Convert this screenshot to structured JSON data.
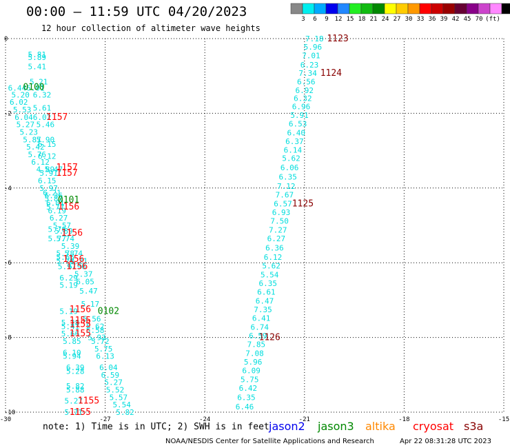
{
  "title": "00:00 – 11:59 UTC 04/20/2023",
  "subtitle": "12 hour collection of altimeter wave heights",
  "note": "note:  1) Time is in UTC; 2) SWH is in feet",
  "satellites": [
    {
      "name": "jason2",
      "color": "#0000ee"
    },
    {
      "name": "jason3",
      "color": "#008800"
    },
    {
      "name": "altika",
      "color": "#ff8800"
    },
    {
      "name": "cryosat",
      "color": "#ff0000"
    },
    {
      "name": "s3a",
      "color": "#880000"
    }
  ],
  "credit": "NOAA/NESDIS Center for Satellite Applications and Research",
  "timestamp": "Apr 22 08:31:28 UTC 2023",
  "colorbar": {
    "unit": "(ft)",
    "colors": [
      "#888888",
      "#00eeee",
      "#00aaff",
      "#0000ee",
      "#2288ff",
      "#22ee22",
      "#11bb11",
      "#008800",
      "#ffff00",
      "#ffcc00",
      "#ff9900",
      "#ff0000",
      "#cc0000",
      "#990000",
      "#660033",
      "#880088",
      "#cc44cc",
      "#ff88ff",
      "#000000"
    ],
    "labels": [
      "3",
      "6",
      "9",
      "12",
      "15",
      "18",
      "21",
      "24",
      "27",
      "30",
      "33",
      "36",
      "39",
      "42",
      "45",
      "70"
    ]
  },
  "chart_data": {
    "type": "scatter",
    "title": "00:00 – 11:59 UTC 04/20/2023",
    "xlim": [
      -30,
      -15
    ],
    "ylim": [
      -10,
      0
    ],
    "x_ticks": [
      "-30",
      "-27",
      "-24",
      "-21",
      "-18",
      "-15"
    ],
    "y_ticks": [
      "0",
      "-2",
      "-4",
      "-6",
      "-8",
      "-10"
    ],
    "grid": true,
    "value_color": "#00dddd",
    "west_track": [
      {
        "x": -29.05,
        "y": -0.42,
        "v": "5.81"
      },
      {
        "x": -29.05,
        "y": -0.5,
        "v": "5.89"
      },
      {
        "x": -29.05,
        "y": -0.75,
        "v": "5.41"
      },
      {
        "x": -29.0,
        "y": -1.15,
        "v": "5.21"
      },
      {
        "x": -29.65,
        "y": -1.32,
        "v": "6.44"
      },
      {
        "x": -29.1,
        "y": -1.32,
        "v": "6.01"
      },
      {
        "x": -28.9,
        "y": -1.5,
        "v": "6.32"
      },
      {
        "x": -29.55,
        "y": -1.5,
        "v": "5.20"
      },
      {
        "x": -29.6,
        "y": -1.7,
        "v": "6.02"
      },
      {
        "x": -28.9,
        "y": -1.85,
        "v": "5.61"
      },
      {
        "x": -29.5,
        "y": -1.9,
        "v": "5.53"
      },
      {
        "x": -29.45,
        "y": -2.1,
        "v": "6.04"
      },
      {
        "x": -28.9,
        "y": -2.1,
        "v": "6.02"
      },
      {
        "x": -29.4,
        "y": -2.3,
        "v": "5.27"
      },
      {
        "x": -28.8,
        "y": -2.3,
        "v": "5.46"
      },
      {
        "x": -29.3,
        "y": -2.5,
        "v": "5.23"
      },
      {
        "x": -29.2,
        "y": -2.7,
        "v": "5.87"
      },
      {
        "x": -28.8,
        "y": -2.7,
        "v": "5.90"
      },
      {
        "x": -28.75,
        "y": -2.82,
        "v": "6.15"
      },
      {
        "x": -29.1,
        "y": -2.9,
        "v": "5.42"
      },
      {
        "x": -29.05,
        "y": -3.1,
        "v": "5.76"
      },
      {
        "x": -28.75,
        "y": -3.15,
        "v": "6.12"
      },
      {
        "x": -28.95,
        "y": -3.3,
        "v": "6.12"
      },
      {
        "x": -28.8,
        "y": -3.5,
        "v": "4.89"
      },
      {
        "x": -28.55,
        "y": -3.5,
        "v": "5.47"
      },
      {
        "x": -28.7,
        "y": -3.6,
        "v": "5.91"
      },
      {
        "x": -28.75,
        "y": -3.8,
        "v": "6.15"
      },
      {
        "x": -28.7,
        "y": -4.0,
        "v": "5.97"
      },
      {
        "x": -28.6,
        "y": -4.12,
        "v": "6.21"
      },
      {
        "x": -28.55,
        "y": -4.2,
        "v": "6.36"
      },
      {
        "x": -28.55,
        "y": -4.28,
        "v": "5.87"
      },
      {
        "x": -28.5,
        "y": -4.4,
        "v": "6.01"
      },
      {
        "x": -28.5,
        "y": -4.5,
        "v": "5.77"
      },
      {
        "x": -28.45,
        "y": -4.6,
        "v": "6.19"
      },
      {
        "x": -28.4,
        "y": -4.8,
        "v": "6.27"
      },
      {
        "x": -28.3,
        "y": -5.0,
        "v": "5.57"
      },
      {
        "x": -28.45,
        "y": -5.1,
        "v": "5.76"
      },
      {
        "x": -28.25,
        "y": -5.15,
        "v": "5.89"
      },
      {
        "x": -28.45,
        "y": -5.35,
        "v": "5.77"
      },
      {
        "x": -28.2,
        "y": -5.35,
        "v": "5.74"
      },
      {
        "x": -28.05,
        "y": -5.55,
        "v": "5.39"
      },
      {
        "x": -28.2,
        "y": -5.75,
        "v": "5.78"
      },
      {
        "x": -27.95,
        "y": -5.75,
        "v": "5.74"
      },
      {
        "x": -28.2,
        "y": -5.85,
        "v": "5.66"
      },
      {
        "x": -28.2,
        "y": -5.95,
        "v": "5.78"
      },
      {
        "x": -27.8,
        "y": -5.95,
        "v": "6.21"
      },
      {
        "x": -28.15,
        "y": -6.1,
        "v": "5.97"
      },
      {
        "x": -27.85,
        "y": -6.1,
        "v": "5.96"
      },
      {
        "x": -27.65,
        "y": -6.3,
        "v": "5.37"
      },
      {
        "x": -28.1,
        "y": -6.4,
        "v": "6.29"
      },
      {
        "x": -27.6,
        "y": -6.5,
        "v": "6.05"
      },
      {
        "x": -28.1,
        "y": -6.6,
        "v": "5.19"
      },
      {
        "x": -27.5,
        "y": -6.75,
        "v": "5.47"
      },
      {
        "x": -27.45,
        "y": -7.1,
        "v": "5.17"
      },
      {
        "x": -28.1,
        "y": -7.3,
        "v": "5.19"
      },
      {
        "x": -27.4,
        "y": -7.5,
        "v": "5.56"
      },
      {
        "x": -28.05,
        "y": -7.6,
        "v": "5.28"
      },
      {
        "x": -28.05,
        "y": -7.7,
        "v": "5.41"
      },
      {
        "x": -27.3,
        "y": -7.7,
        "v": "5.62"
      },
      {
        "x": -27.3,
        "y": -7.8,
        "v": "5.58"
      },
      {
        "x": -28.05,
        "y": -7.9,
        "v": "5.66"
      },
      {
        "x": -27.25,
        "y": -8.0,
        "v": "5.93"
      },
      {
        "x": -28.0,
        "y": -8.1,
        "v": "5.85"
      },
      {
        "x": -27.15,
        "y": -8.1,
        "v": "5.72"
      },
      {
        "x": -27.05,
        "y": -8.3,
        "v": "5.75"
      },
      {
        "x": -28.0,
        "y": -8.4,
        "v": "6.10"
      },
      {
        "x": -28.0,
        "y": -8.5,
        "v": "5.94"
      },
      {
        "x": -27.0,
        "y": -8.5,
        "v": "6.13"
      },
      {
        "x": -27.9,
        "y": -8.8,
        "v": "6.39"
      },
      {
        "x": -26.9,
        "y": -8.8,
        "v": "6.04"
      },
      {
        "x": -27.9,
        "y": -8.9,
        "v": "5.28"
      },
      {
        "x": -26.85,
        "y": -9.0,
        "v": "6.59"
      },
      {
        "x": -26.75,
        "y": -9.2,
        "v": "5.27"
      },
      {
        "x": -27.9,
        "y": -9.3,
        "v": "5.82"
      },
      {
        "x": -27.9,
        "y": -9.4,
        "v": "5.88"
      },
      {
        "x": -26.7,
        "y": -9.4,
        "v": "5.52"
      },
      {
        "x": -26.6,
        "y": -9.6,
        "v": "5.57"
      },
      {
        "x": -27.95,
        "y": -9.7,
        "v": "5.27"
      },
      {
        "x": -26.5,
        "y": -9.8,
        "v": "5.54"
      },
      {
        "x": -27.95,
        "y": -10.0,
        "v": "5.71"
      },
      {
        "x": -26.4,
        "y": -10.0,
        "v": "5.82"
      }
    ],
    "east_track": [
      {
        "x": -20.7,
        "y": 0.0,
        "v": "7.18"
      },
      {
        "x": -20.75,
        "y": -0.22,
        "v": "5.96"
      },
      {
        "x": -20.8,
        "y": -0.45,
        "v": "7.01"
      },
      {
        "x": -20.85,
        "y": -0.7,
        "v": "6.23"
      },
      {
        "x": -20.9,
        "y": -0.92,
        "v": "7.34"
      },
      {
        "x": -20.95,
        "y": -1.15,
        "v": "6.56"
      },
      {
        "x": -21.0,
        "y": -1.38,
        "v": "6.92"
      },
      {
        "x": -21.05,
        "y": -1.6,
        "v": "6.32"
      },
      {
        "x": -21.1,
        "y": -1.82,
        "v": "6.96"
      },
      {
        "x": -21.15,
        "y": -2.05,
        "v": "5.91"
      },
      {
        "x": -21.2,
        "y": -2.28,
        "v": "6.53"
      },
      {
        "x": -21.25,
        "y": -2.52,
        "v": "6.40"
      },
      {
        "x": -21.3,
        "y": -2.75,
        "v": "6.37"
      },
      {
        "x": -21.35,
        "y": -2.98,
        "v": "6.14"
      },
      {
        "x": -21.4,
        "y": -3.2,
        "v": "5.62"
      },
      {
        "x": -21.45,
        "y": -3.45,
        "v": "6.06"
      },
      {
        "x": -21.5,
        "y": -3.7,
        "v": "6.35"
      },
      {
        "x": -21.55,
        "y": -3.95,
        "v": "7.12"
      },
      {
        "x": -21.6,
        "y": -4.18,
        "v": "7.67"
      },
      {
        "x": -21.65,
        "y": -4.42,
        "v": "6.57"
      },
      {
        "x": -21.7,
        "y": -4.65,
        "v": "6.93"
      },
      {
        "x": -21.75,
        "y": -4.88,
        "v": "7.50"
      },
      {
        "x": -21.8,
        "y": -5.12,
        "v": "7.27"
      },
      {
        "x": -21.85,
        "y": -5.35,
        "v": "6.27"
      },
      {
        "x": -21.9,
        "y": -5.6,
        "v": "6.36"
      },
      {
        "x": -21.95,
        "y": -5.85,
        "v": "6.12"
      },
      {
        "x": -22.0,
        "y": -6.08,
        "v": "5.62"
      },
      {
        "x": -22.05,
        "y": -6.32,
        "v": "5.54"
      },
      {
        "x": -22.1,
        "y": -6.55,
        "v": "6.35"
      },
      {
        "x": -22.15,
        "y": -6.78,
        "v": "6.61"
      },
      {
        "x": -22.2,
        "y": -7.02,
        "v": "6.47"
      },
      {
        "x": -22.25,
        "y": -7.25,
        "v": "7.35"
      },
      {
        "x": -22.3,
        "y": -7.48,
        "v": "6.41"
      },
      {
        "x": -22.35,
        "y": -7.72,
        "v": "6.74"
      },
      {
        "x": -22.4,
        "y": -7.95,
        "v": "6.59"
      },
      {
        "x": -22.45,
        "y": -8.18,
        "v": "7.85"
      },
      {
        "x": -22.5,
        "y": -8.42,
        "v": "7.08"
      },
      {
        "x": -22.55,
        "y": -8.65,
        "v": "5.96"
      },
      {
        "x": -22.6,
        "y": -8.88,
        "v": "6.09"
      },
      {
        "x": -22.65,
        "y": -9.12,
        "v": "5.75"
      },
      {
        "x": -22.7,
        "y": -9.35,
        "v": "6.42"
      },
      {
        "x": -22.75,
        "y": -9.6,
        "v": "6.35"
      },
      {
        "x": -22.8,
        "y": -9.85,
        "v": "6.46"
      }
    ],
    "time_labels": [
      {
        "x": -20.0,
        "y": 0.0,
        "t": "1123",
        "sat": "s3a"
      },
      {
        "x": -20.2,
        "y": -0.92,
        "t": "1124",
        "sat": "s3a"
      },
      {
        "x": -21.05,
        "y": -4.42,
        "t": "1125",
        "sat": "s3a"
      },
      {
        "x": -22.05,
        "y": -8.0,
        "t": "1126",
        "sat": "s3a"
      },
      {
        "x": -29.15,
        "y": -1.3,
        "t": "0100",
        "sat": "jason3"
      },
      {
        "x": -28.1,
        "y": -4.32,
        "t": "0101",
        "sat": "jason3"
      },
      {
        "x": -26.9,
        "y": -7.3,
        "t": "0102",
        "sat": "jason3"
      },
      {
        "x": -28.45,
        "y": -2.1,
        "t": "1157",
        "sat": "cryosat"
      },
      {
        "x": -28.15,
        "y": -3.45,
        "t": "1157",
        "sat": "cryosat"
      },
      {
        "x": -28.15,
        "y": -3.6,
        "t": "1157",
        "sat": "cryosat"
      },
      {
        "x": -28.1,
        "y": -4.5,
        "t": "1156",
        "sat": "cryosat"
      },
      {
        "x": -28.0,
        "y": -5.2,
        "t": "1156",
        "sat": "cryosat"
      },
      {
        "x": -27.95,
        "y": -5.9,
        "t": "1156",
        "sat": "cryosat"
      },
      {
        "x": -27.85,
        "y": -6.1,
        "t": "1156",
        "sat": "cryosat"
      },
      {
        "x": -27.75,
        "y": -7.25,
        "t": "1156",
        "sat": "cryosat"
      },
      {
        "x": -27.75,
        "y": -7.55,
        "t": "1155",
        "sat": "cryosat"
      },
      {
        "x": -27.75,
        "y": -7.65,
        "t": "1155",
        "sat": "cryosat"
      },
      {
        "x": -27.75,
        "y": -7.9,
        "t": "1155",
        "sat": "cryosat"
      },
      {
        "x": -27.5,
        "y": -9.7,
        "t": "1155",
        "sat": "cryosat"
      },
      {
        "x": -27.75,
        "y": -10.0,
        "t": "1155",
        "sat": "cryosat"
      }
    ]
  }
}
